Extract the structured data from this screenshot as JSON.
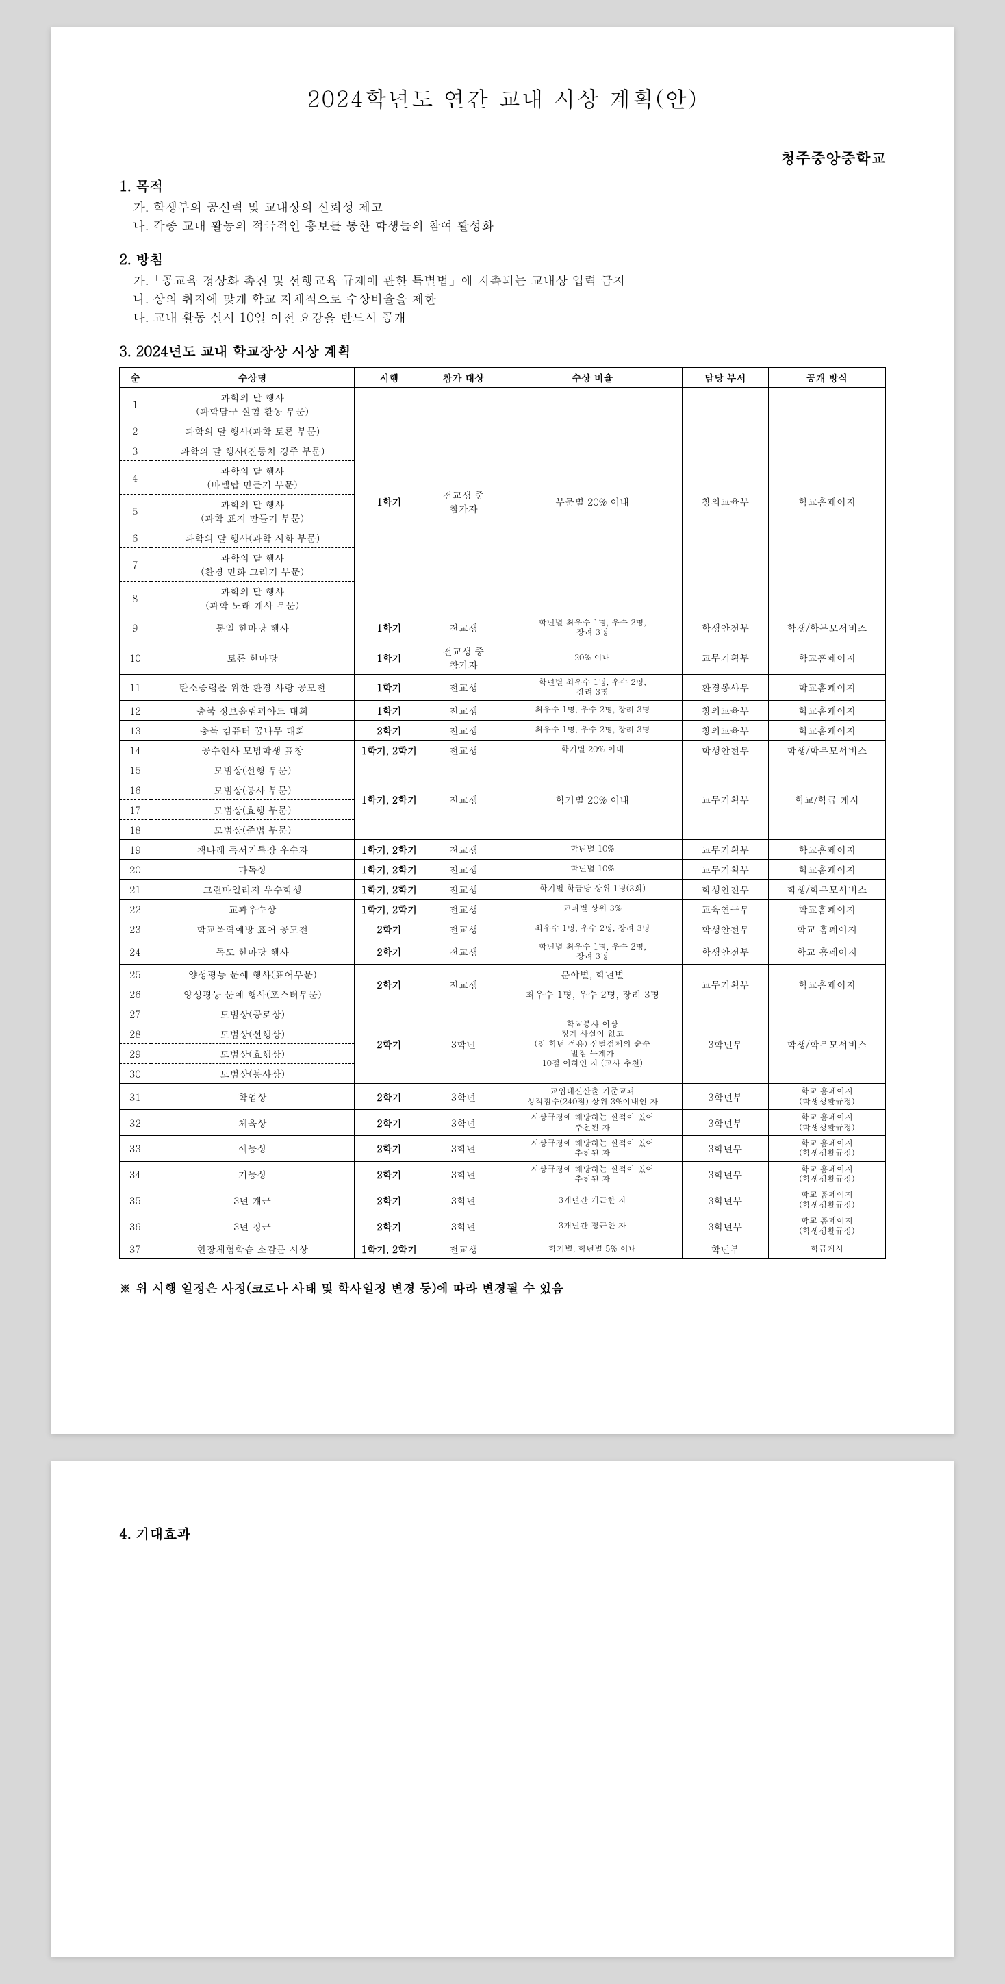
{
  "title": "2024학년도 연간 교내 시상 계획(안)",
  "school": "청주중앙중학교",
  "sections": {
    "purpose": {
      "head": "1. 목적",
      "a": "가. 학생부의 공신력 및 교내상의 신뢰성 제고",
      "b": "나. 각종 교내 활동의 적극적인 홍보를 통한 학생들의 참여 활성화"
    },
    "policy": {
      "head": "2. 방침",
      "a": "가.「공교육 정상화 촉진 및 선행교육 규제에 관한 특별법」에 저촉되는 교내상 입력 금지",
      "b": "나. 상의 취지에 맞게 학교 자체적으로 수상비율을 제한",
      "c": "다. 교내 활동 실시 10일 이전 요강을 반드시 공개"
    },
    "plan_head": "3. 2024년도 교내 학교장상 시상 계획",
    "expected_head": "4. 기대효과"
  },
  "table": {
    "headers": [
      "순",
      "수상명",
      "시행",
      "참가 대상",
      "수상 비율",
      "담당 부서",
      "공개 방식"
    ],
    "group1": {
      "rows": [
        {
          "n": "1",
          "name": "과학의 달 행사\n(과학탐구 실험 활동 부문)"
        },
        {
          "n": "2",
          "name": "과학의 달 행사(과학 토론 부문)"
        },
        {
          "n": "3",
          "name": "과학의 달 행사(진동차 경주 부문)"
        },
        {
          "n": "4",
          "name": "과학의 달 행사\n(바벨탑 만들기 부문)"
        },
        {
          "n": "5",
          "name": "과학의 달 행사\n(과학 표지 만들기 부문)"
        },
        {
          "n": "6",
          "name": "과학의 달 행사(과학 시화 부문)"
        },
        {
          "n": "7",
          "name": "과학의 달 행사\n(환경 만화 그리기 부문)"
        },
        {
          "n": "8",
          "name": "과학의 달 행사\n(과학 노래 개사 부문)"
        }
      ],
      "term": "1학기",
      "target": "전교생 중\n참가자",
      "ratio": "부문별 20% 이내",
      "dept": "창의교육부",
      "pub": "학교홈페이지"
    },
    "rows_single": [
      {
        "n": "9",
        "name": "통일 한마당 행사",
        "term": "1학기",
        "target": "전교생",
        "ratio": "학년별 최우수 1명, 우수 2명,\n장려 3명",
        "dept": "학생안전부",
        "pub": "학생/학부모서비스"
      },
      {
        "n": "10",
        "name": "토론 한마당",
        "term": "1학기",
        "target": "전교생 중\n참가자",
        "ratio": "20% 이내",
        "dept": "교무기획부",
        "pub": "학교홈페이지"
      },
      {
        "n": "11",
        "name": "탄소중립을 위한 환경 사랑 공모전",
        "term": "1학기",
        "target": "전교생",
        "ratio": "학년별 최우수 1명, 우수 2명,\n장려 3명",
        "dept": "환경봉사부",
        "pub": "학교홈페이지"
      },
      {
        "n": "12",
        "name": "충북 정보올림피아드 대회",
        "term": "1학기",
        "target": "전교생",
        "ratio": "최우수 1명, 우수 2명, 장려 3명",
        "dept": "창의교육부",
        "pub": "학교홈페이지"
      },
      {
        "n": "13",
        "name": "충북 컴퓨터 꿈나무 대회",
        "term": "2학기",
        "target": "전교생",
        "ratio": "최우수 1명, 우수 2명, 장려 3명",
        "dept": "창의교육부",
        "pub": "학교홈페이지"
      },
      {
        "n": "14",
        "name": "공수인사 모범학생 표창",
        "term": "1학기, 2학기",
        "target": "전교생",
        "ratio": "학기별 20% 이내",
        "dept": "학생안전부",
        "pub": "학생/학부모서비스"
      }
    ],
    "group2": {
      "rows": [
        {
          "n": "15",
          "name": "모범상(선행 부문)"
        },
        {
          "n": "16",
          "name": "모범상(봉사 부문)"
        },
        {
          "n": "17",
          "name": "모범상(효행 부문)"
        },
        {
          "n": "18",
          "name": "모범상(준법 부문)"
        }
      ],
      "term": "1학기, 2학기",
      "target": "전교생",
      "ratio": "학기별 20% 이내",
      "dept": "교무기획부",
      "pub": "학교/학급 게시"
    },
    "rows_single2": [
      {
        "n": "19",
        "name": "책나래 독서기록장 우수자",
        "term": "1학기, 2학기",
        "target": "전교생",
        "ratio": "학년별 10%",
        "dept": "교무기획부",
        "pub": "학교홈페이지"
      },
      {
        "n": "20",
        "name": "다독상",
        "term": "1학기, 2학기",
        "target": "전교생",
        "ratio": "학년별 10%",
        "dept": "교무기획부",
        "pub": "학교홈페이지"
      },
      {
        "n": "21",
        "name": "그린마일리지 우수학생",
        "term": "1학기, 2학기",
        "target": "전교생",
        "ratio": "학기별 학급당 상위 1명(3회)",
        "dept": "학생안전부",
        "pub": "학생/학부모서비스"
      },
      {
        "n": "22",
        "name": "교과우수상",
        "term": "1학기, 2학기",
        "target": "전교생",
        "ratio": "교과별 상위 3%",
        "dept": "교육연구부",
        "pub": "학교홈페이지"
      },
      {
        "n": "23",
        "name": "학교폭력예방 표어 공모전",
        "term": "2학기",
        "target": "전교생",
        "ratio": "최우수 1명, 우수 2명, 장려 3명",
        "dept": "학생안전부",
        "pub": "학교 홈페이지"
      },
      {
        "n": "24",
        "name": "독도 한마당 행사",
        "term": "2학기",
        "target": "전교생",
        "ratio": "학년별 최우수 1명, 우수 2명,\n장려 3명",
        "dept": "학생안전부",
        "pub": "학교 홈페이지"
      }
    ],
    "group3": {
      "rows": [
        {
          "n": "25",
          "name": "양성평등 문예 행사(표어부문)",
          "ratio": "분야별, 학년별"
        },
        {
          "n": "26",
          "name": "양성평등 문예 행사(포스터부문)",
          "ratio": "최우수 1명, 우수 2명, 장려 3명"
        }
      ],
      "term": "2학기",
      "target": "전교생",
      "dept": "교무기획부",
      "pub": "학교홈페이지"
    },
    "group4": {
      "rows": [
        {
          "n": "27",
          "name": "모범상(공로상)"
        },
        {
          "n": "28",
          "name": "모범상(선행상)"
        },
        {
          "n": "29",
          "name": "모범상(효행상)"
        },
        {
          "n": "30",
          "name": "모범상(봉사상)"
        }
      ],
      "term": "2학기",
      "target": "3학년",
      "ratio": "학교봉사 이상\n징계 사실이 없고\n(전 학년 적용) 상벌점제의 순수\n벌점 누계가\n10점 이하인 자 (교사 추천)",
      "dept": "3학년부",
      "pub": "학생/학부모서비스"
    },
    "rows_single3": [
      {
        "n": "31",
        "name": "학업상",
        "term": "2학기",
        "target": "3학년",
        "ratio": "교입내신산출 기준교과\n성적점수(240점) 상위 3%이내인 자",
        "dept": "3학년부",
        "pub": "학교 홈페이지\n(학생생활규정)"
      },
      {
        "n": "32",
        "name": "체육상",
        "term": "2학기",
        "target": "3학년",
        "ratio": "시상규정에 해당하는 실적이 있어\n추천된 자",
        "dept": "3학년부",
        "pub": "학교 홈페이지\n(학생생활규정)"
      },
      {
        "n": "33",
        "name": "예능상",
        "term": "2학기",
        "target": "3학년",
        "ratio": "시상규정에 해당하는 실적이 있어\n추천된 자",
        "dept": "3학년부",
        "pub": "학교 홈페이지\n(학생생활규정)"
      },
      {
        "n": "34",
        "name": "기능상",
        "term": "2학기",
        "target": "3학년",
        "ratio": "시상규정에 해당하는 실적이 있어\n추천된 자",
        "dept": "3학년부",
        "pub": "학교 홈페이지\n(학생생활규정)"
      },
      {
        "n": "35",
        "name": "3년 개근",
        "term": "2학기",
        "target": "3학년",
        "ratio": "3개년간 개근한 자",
        "dept": "3학년부",
        "pub": "학교 홈페이지\n(학생생활규정)"
      },
      {
        "n": "36",
        "name": "3년 정근",
        "term": "2학기",
        "target": "3학년",
        "ratio": "3개년간 정근한 자",
        "dept": "3학년부",
        "pub": "학교 홈페이지\n(학생생활규정)"
      },
      {
        "n": "37",
        "name": "현장체험학습 소감문 시상",
        "term": "1학기, 2학기",
        "target": "전교생",
        "ratio": "학기별, 학년별 5% 이내",
        "dept": "학년부",
        "pub": "학급게시"
      }
    ]
  },
  "note": "※ 위 시행 일정은 사정(코로나 사태 및 학사일정 변경 등)에 따라 변경될 수 있음"
}
